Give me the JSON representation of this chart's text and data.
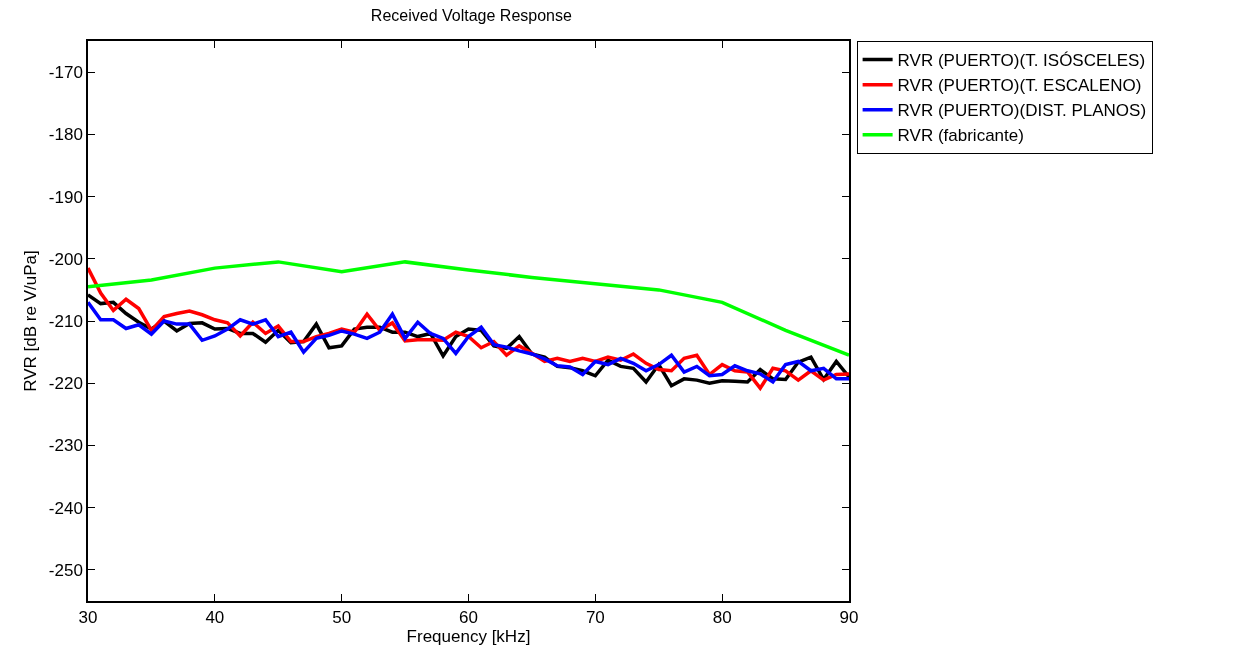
{
  "chart_data": {
    "type": "line",
    "title": "Received Voltage Response",
    "xlabel": "Frequency [kHz]",
    "ylabel": "RVR [dB re V/uPa]",
    "x": [
      30,
      31,
      32,
      33,
      34,
      35,
      36,
      37,
      38,
      39,
      40,
      41,
      42,
      43,
      44,
      45,
      46,
      47,
      48,
      49,
      50,
      51,
      52,
      53,
      54,
      55,
      56,
      57,
      58,
      59,
      60,
      61,
      62,
      63,
      64,
      65,
      66,
      67,
      68,
      69,
      70,
      71,
      72,
      73,
      74,
      75,
      76,
      77,
      78,
      79,
      80,
      81,
      82,
      83,
      84,
      85,
      86,
      87,
      88,
      89,
      90
    ],
    "series": [
      {
        "name": "RVR (PUERTO)(T. ISÓSCELES)",
        "color": "#000000",
        "values": [
          -205.8,
          -207.2,
          -207,
          -208.8,
          -210.2,
          -211.3,
          -210,
          -211.6,
          -210.4,
          -210.3,
          -211.3,
          -211.2,
          -212,
          -212,
          -213.4,
          -211.5,
          -213.5,
          -213.3,
          -210.5,
          -214.3,
          -214,
          -211.3,
          -211,
          -211,
          -211.8,
          -211.8,
          -212.5,
          -212,
          -215.6,
          -212.5,
          -211.3,
          -211.5,
          -214,
          -214.4,
          -212.5,
          -215.3,
          -215.8,
          -217.3,
          -217.5,
          -218,
          -218.8,
          -216.3,
          -217.3,
          -217.6,
          -219.8,
          -217,
          -220.4,
          -219.3,
          -219.5,
          -220,
          -219.6,
          -219.7,
          -219.8,
          -217.8,
          -219.3,
          -219.4,
          -216.6,
          -215.8,
          -219.4,
          -216.5,
          -219
        ]
      },
      {
        "name": "RVR (PUERTO)(T. ESCALENO)",
        "color": "#ff0000",
        "values": [
          -201.5,
          -205.5,
          -208.3,
          -206.5,
          -208,
          -211.5,
          -209.3,
          -208.8,
          -208.4,
          -209,
          -209.8,
          -210.3,
          -212.4,
          -210.2,
          -212,
          -210.8,
          -213.3,
          -213.3,
          -212.5,
          -212,
          -211.3,
          -211.8,
          -208.9,
          -211.5,
          -210.3,
          -213.2,
          -213,
          -213,
          -213.1,
          -211.8,
          -212.5,
          -214.3,
          -213.3,
          -215.5,
          -214,
          -215.2,
          -216.5,
          -216,
          -216.5,
          -216,
          -216.5,
          -215.8,
          -216.3,
          -215.3,
          -216.8,
          -217.8,
          -218,
          -216,
          -215.5,
          -218.6,
          -217,
          -218,
          -218.2,
          -220.8,
          -217.6,
          -218,
          -219.5,
          -218,
          -219.5,
          -218.6,
          -218.5
        ]
      },
      {
        "name": "RVR (PUERTO)(DIST. PLANOS)",
        "color": "#0000ff",
        "values": [
          -207,
          -209.8,
          -209.8,
          -211.2,
          -210.6,
          -212.1,
          -210,
          -210.5,
          -210.5,
          -213.1,
          -212.4,
          -211.3,
          -209.8,
          -210.5,
          -209.8,
          -212.5,
          -211.8,
          -215,
          -212.8,
          -212.3,
          -211.6,
          -212.1,
          -212.8,
          -211.8,
          -208.9,
          -212.8,
          -210.2,
          -212,
          -212.8,
          -215.2,
          -212.5,
          -211,
          -213.8,
          -214.2,
          -214.8,
          -215.3,
          -216.1,
          -217.2,
          -217.4,
          -218.6,
          -216.5,
          -217,
          -216,
          -216.8,
          -218,
          -217,
          -215.5,
          -218.2,
          -217.3,
          -218.8,
          -218.6,
          -217.2,
          -218,
          -218.5,
          -219.8,
          -217,
          -216.5,
          -218,
          -217.6,
          -219.3,
          -219.3
        ]
      },
      {
        "name": "RVR (fabricante)",
        "color": "#00ff00",
        "x": [
          30,
          35,
          40,
          45,
          50,
          55,
          60,
          65,
          70,
          75,
          80,
          85,
          90
        ],
        "values": [
          -204.5,
          -203.4,
          -201.5,
          -200.5,
          -202.1,
          -200.5,
          -201.8,
          -203,
          -204,
          -205,
          -207,
          -211.5,
          -215.5
        ]
      }
    ],
    "xlim": [
      30,
      90
    ],
    "xticks": [
      30,
      40,
      50,
      60,
      70,
      80,
      90
    ],
    "ylim": [
      -255,
      -165
    ],
    "yticks": [
      -250,
      -240,
      -230,
      -220,
      -210,
      -200,
      -190,
      -180,
      -170
    ],
    "legend": "top right",
    "line_style": "solid",
    "marker": "none"
  }
}
